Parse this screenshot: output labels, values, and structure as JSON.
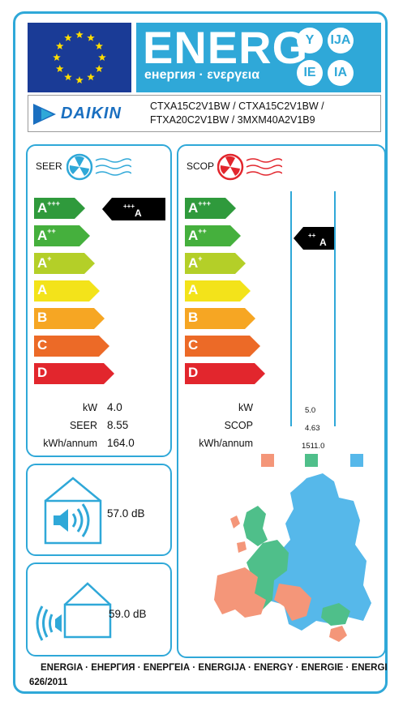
{
  "header": {
    "energ_word": "ENERG",
    "energ_sub": "енергия · ενεργεια",
    "language_badges": [
      "Y",
      "IJA",
      "IE",
      "IA"
    ],
    "brand": "DAIKIN",
    "models_line1": "CTXA15C2V1BW / CTXA15C2V1BW /",
    "models_line2": "FTXA20C2V1BW / 3MXM40A2V1B9"
  },
  "scale": {
    "classes": [
      {
        "letter": "A",
        "sup": "+++",
        "color": "#2f9a3c"
      },
      {
        "letter": "A",
        "sup": "++",
        "color": "#45b03d"
      },
      {
        "letter": "A",
        "sup": "+",
        "color": "#b4cf28"
      },
      {
        "letter": "A",
        "sup": "",
        "color": "#f3e31a"
      },
      {
        "letter": "B",
        "sup": "",
        "color": "#f6a623"
      },
      {
        "letter": "C",
        "sup": "",
        "color": "#ec6a27"
      },
      {
        "letter": "D",
        "sup": "",
        "color": "#e2262d"
      }
    ]
  },
  "seer": {
    "title": "SEER",
    "rating_letter": "A",
    "rating_sup": "+++",
    "labels": [
      "kW",
      "SEER",
      "kWh/annum"
    ],
    "values": [
      "4.0",
      "8.55",
      "164.0"
    ]
  },
  "scop": {
    "title": "SCOP",
    "rating_letter": "A",
    "rating_sup": "++",
    "labels": [
      "kW",
      "SCOP",
      "kWh/annum"
    ],
    "values": [
      "5.0",
      "4.63",
      "1511.0"
    ],
    "climate_colors": [
      "#f49679",
      "#4fbf8a",
      "#56b8ea"
    ]
  },
  "noise": {
    "indoor_db": "57.0 dB",
    "outdoor_db": "59.0 dB"
  },
  "footer": {
    "line1": "ENERGIA · ЕНЕРГИЯ · ΕΝΕΡΓΕΙΑ · ENERGIJA · ENERGY · ENERGIE · ENERGI",
    "line2": "626/2011"
  }
}
